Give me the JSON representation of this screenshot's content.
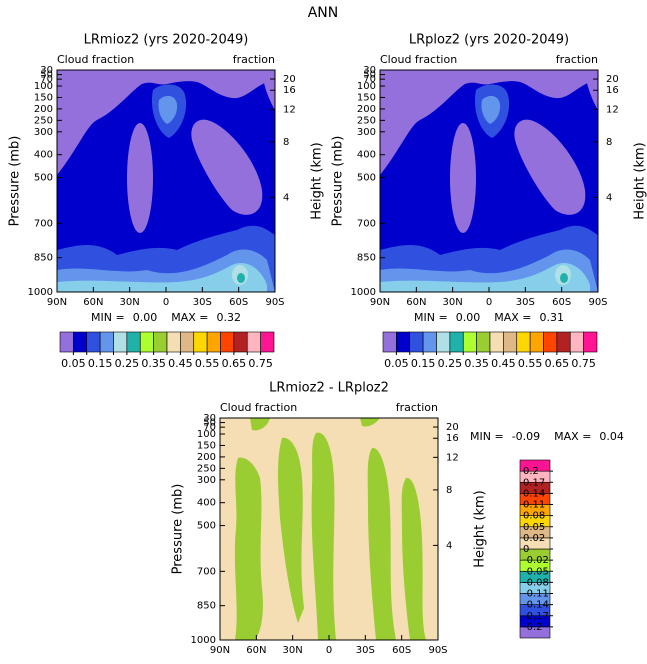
{
  "title": "ANN",
  "chart_data": [
    {
      "type": "contour",
      "title": "LRmioz2 (yrs 2020-2049)",
      "left_label": "Cloud fraction",
      "right_label": "fraction",
      "ylabel": "Pressure (mb)",
      "y2label": "Height (km)",
      "xlim": [
        90,
        -90
      ],
      "xticks": [
        {
          "value": 90,
          "label": "90N"
        },
        {
          "value": 60,
          "label": "60N"
        },
        {
          "value": 30,
          "label": "30N"
        },
        0,
        {
          "value": -30,
          "label": "30S"
        },
        {
          "value": -60,
          "label": "60S"
        },
        {
          "value": -90,
          "label": "90S"
        }
      ],
      "ylim": [
        1000,
        30
      ],
      "yticks": [
        30,
        50,
        70,
        100,
        150,
        200,
        250,
        300,
        400,
        500,
        700,
        850,
        1000
      ],
      "y2ticks": [
        20,
        16,
        12,
        8,
        4
      ],
      "min_label": "MIN =",
      "min": {
        "value": 0,
        "label": "0.00"
      },
      "max_label": "MAX =",
      "max": 0.32,
      "colorbar": {
        "orientation": "horizontal",
        "label_every": 2,
        "levels": [
          0.05,
          0.1,
          0.15,
          0.2,
          0.25,
          0.3,
          0.35,
          0.4,
          0.45,
          0.5,
          0.55,
          0.6,
          0.65,
          0.7,
          0.75
        ],
        "colors": [
          "#9370db",
          "#0000cd",
          "#3050e0",
          "#6495ed",
          "#b0e0e6",
          "#20b2aa",
          "#adff2f",
          "#9acd32",
          "#f5deb3",
          "#deb887",
          "#ffd700",
          "#ffa500",
          "#ff4500",
          "#b22222",
          "#ffb6c1",
          "#ff1493"
        ]
      }
    },
    {
      "type": "contour",
      "title": "LRploz2 (yrs 2020-2049)",
      "left_label": "Cloud fraction",
      "right_label": "fraction",
      "ylabel": "Pressure (mb)",
      "y2label": "Height (km)",
      "xlim": [
        90,
        -90
      ],
      "xticks": [
        {
          "value": 90,
          "label": "90N"
        },
        {
          "value": 60,
          "label": "60N"
        },
        {
          "value": 30,
          "label": "30N"
        },
        0,
        {
          "value": -30,
          "label": "30S"
        },
        {
          "value": -60,
          "label": "60S"
        },
        {
          "value": -90,
          "label": "90S"
        }
      ],
      "ylim": [
        1000,
        30
      ],
      "yticks": [
        30,
        50,
        70,
        100,
        150,
        200,
        250,
        300,
        400,
        500,
        700,
        850,
        1000
      ],
      "y2ticks": [
        20,
        16,
        12,
        8,
        4
      ],
      "min_label": "MIN =",
      "min": {
        "value": 0,
        "label": "0.00"
      },
      "max_label": "MAX =",
      "max": 0.31,
      "colorbar": {
        "orientation": "horizontal",
        "label_every": 2,
        "levels": [
          0.05,
          0.1,
          0.15,
          0.2,
          0.25,
          0.3,
          0.35,
          0.4,
          0.45,
          0.5,
          0.55,
          0.6,
          0.65,
          0.7,
          0.75
        ],
        "colors": [
          "#9370db",
          "#0000cd",
          "#3050e0",
          "#6495ed",
          "#b0e0e6",
          "#20b2aa",
          "#adff2f",
          "#9acd32",
          "#f5deb3",
          "#deb887",
          "#ffd700",
          "#ffa500",
          "#ff4500",
          "#b22222",
          "#ffb6c1",
          "#ff1493"
        ]
      }
    },
    {
      "type": "contour",
      "title": "LRmioz2 - LRploz2",
      "left_label": "Cloud fraction",
      "right_label": "fraction",
      "ylabel": "Pressure (mb)",
      "y2label": "Height (km)",
      "xlim": [
        90,
        -90
      ],
      "xticks": [
        {
          "value": 90,
          "label": "90N"
        },
        {
          "value": 60,
          "label": "60N"
        },
        {
          "value": 30,
          "label": "30N"
        },
        0,
        {
          "value": -30,
          "label": "30S"
        },
        {
          "value": -60,
          "label": "60S"
        },
        {
          "value": -90,
          "label": "90S"
        }
      ],
      "ylim": [
        1000,
        30
      ],
      "yticks": [
        30,
        50,
        70,
        100,
        150,
        200,
        250,
        300,
        400,
        500,
        700,
        850,
        1000
      ],
      "y2ticks": [
        20,
        16,
        12,
        8,
        4
      ],
      "min_label": "MIN =",
      "min": -0.09,
      "max_label": "MAX =",
      "max": 0.04,
      "colorbar": {
        "orientation": "vertical",
        "label_every": 1,
        "levels": [
          -0.2,
          -0.17,
          -0.14,
          -0.11,
          -0.08,
          -0.05,
          -0.02,
          0,
          0.02,
          0.05,
          0.08,
          0.11,
          0.14,
          0.17,
          0.2
        ],
        "colors": [
          "#9370db",
          "#0000cd",
          "#3050e0",
          "#6495ed",
          "#87ceeb",
          "#20b2aa",
          "#adff2f",
          "#9acd32",
          "#f5deb3",
          "#deb887",
          "#ffd700",
          "#ffa500",
          "#ff4500",
          "#b22222",
          "#ffb6c1",
          "#ff1493"
        ]
      }
    }
  ]
}
